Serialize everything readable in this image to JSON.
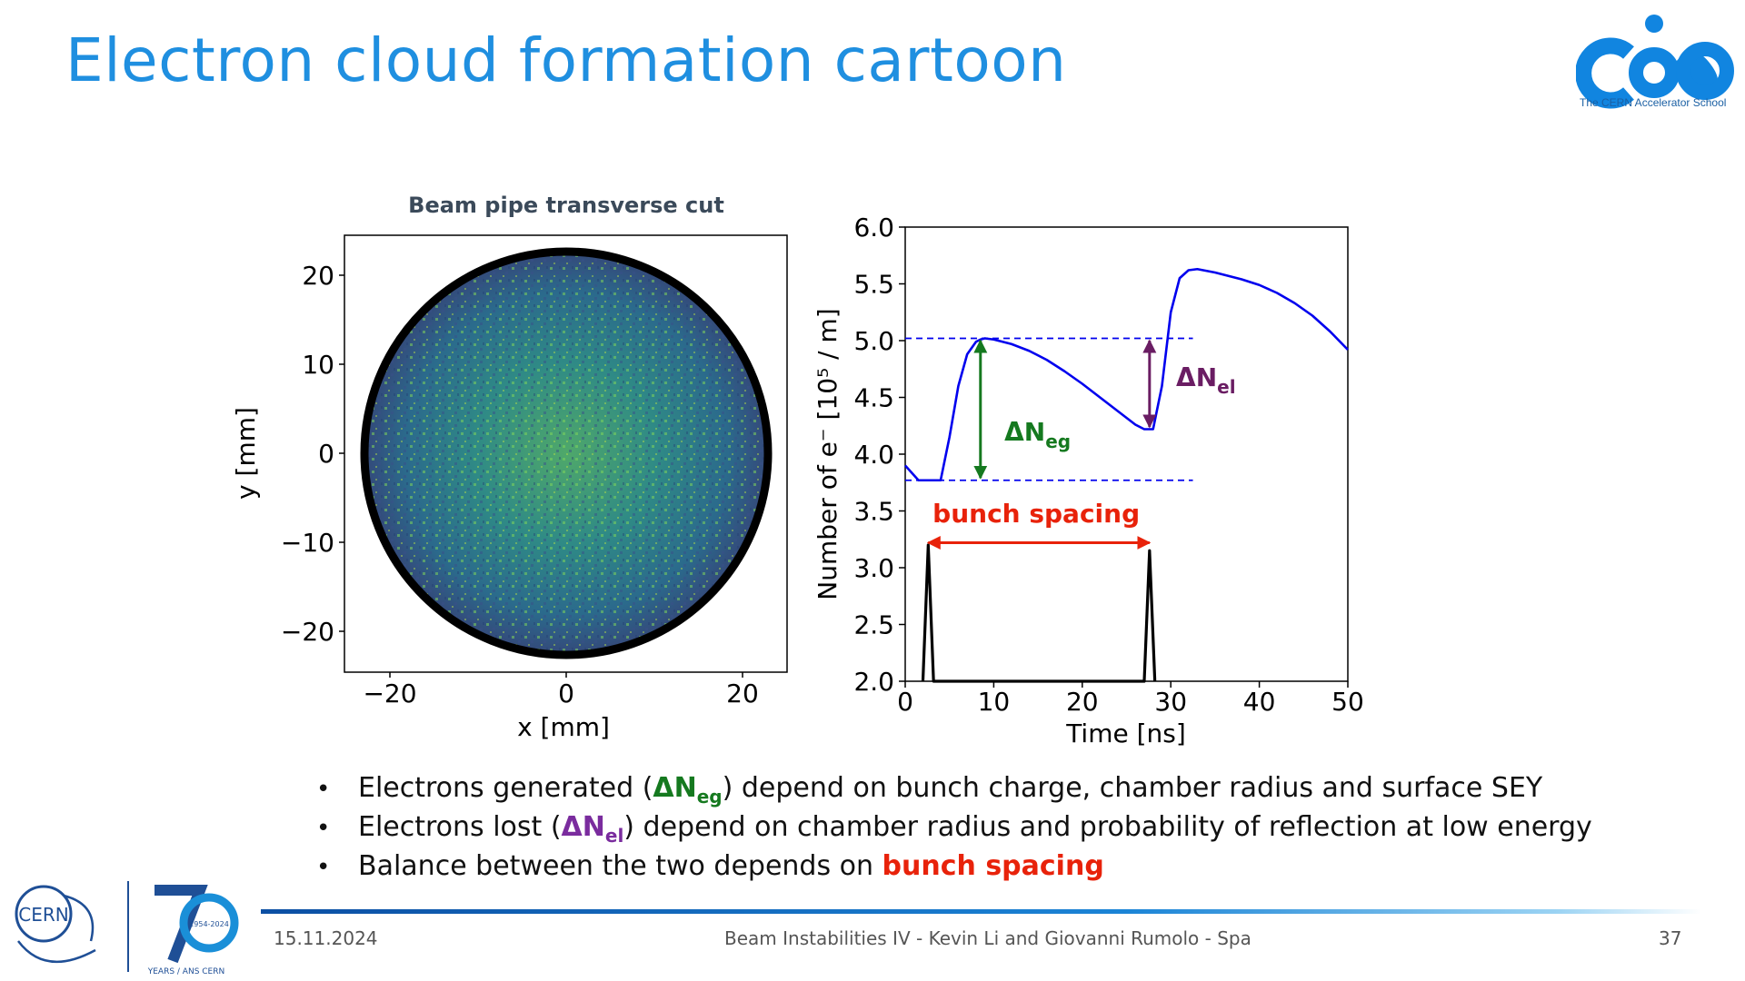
{
  "slide": {
    "title": "Electron cloud formation cartoon",
    "logo_caption": "The CERN Accelerator School",
    "left_plot_title": "Beam pipe transverse cut"
  },
  "left_plot": {
    "xlabel": "x [mm]",
    "ylabel": "y [mm]",
    "xticks": [
      "−20",
      "0",
      "20"
    ],
    "yticks": [
      "20",
      "10",
      "0",
      "−10",
      "−20"
    ]
  },
  "chart_data": {
    "type": "line",
    "xlabel": "Time [ns]",
    "ylabel": "Number of e⁻ [10⁵ / m]",
    "xlim": [
      0,
      50
    ],
    "ylim": [
      2.0,
      6.0
    ],
    "xticks": [
      "0",
      "10",
      "20",
      "30",
      "40",
      "50"
    ],
    "yticks": [
      "6.0",
      "5.5",
      "5.0",
      "4.5",
      "4.0",
      "3.5",
      "3.0",
      "2.5",
      "2.0"
    ],
    "series": [
      {
        "color": "#0000ee",
        "x": [
          0,
          1.5,
          4,
          5,
          6,
          7,
          8,
          8.5,
          9,
          10,
          12,
          14,
          16,
          18,
          20,
          22,
          24,
          26,
          27,
          28,
          29,
          30,
          31,
          32,
          33,
          35,
          38,
          40,
          42,
          44,
          46,
          48,
          50
        ],
        "y": [
          3.9,
          3.77,
          3.77,
          4.15,
          4.6,
          4.88,
          4.99,
          5.01,
          5.02,
          5.01,
          4.97,
          4.91,
          4.83,
          4.73,
          4.62,
          4.5,
          4.38,
          4.26,
          4.22,
          4.22,
          4.6,
          5.25,
          5.55,
          5.62,
          5.63,
          5.6,
          5.54,
          5.49,
          5.42,
          5.33,
          5.22,
          5.08,
          4.92
        ]
      },
      {
        "color": "#000000",
        "x": [
          2.0,
          2.6,
          3.2,
          27.0,
          27.6,
          28.2
        ],
        "y": [
          2.0,
          3.2,
          2.0,
          2.0,
          3.15,
          2.0
        ]
      }
    ],
    "reference_lines": [
      5.02,
      3.77
    ],
    "annotations": [
      {
        "symbol": "ΔN",
        "sub": "eg",
        "color": "#15791f"
      },
      {
        "symbol": "ΔN",
        "sub": "el",
        "color": "#6a1d63"
      },
      {
        "text": "bunch spacing",
        "color": "#e8220a"
      }
    ]
  },
  "bullets": [
    {
      "pre": "Electrons generated (",
      "sym": "ΔN",
      "sub": "eg",
      "post": ") depend on bunch charge, chamber radius and surface SEY"
    },
    {
      "pre": "Electrons lost (",
      "sym": "ΔN",
      "sub": "el",
      "post": ") depend on chamber radius and probability of reflection at low energy"
    },
    {
      "pre": "Balance between the two depends on ",
      "highlight": "bunch spacing"
    }
  ],
  "footer": {
    "date": "15.11.2024",
    "center": "Beam Instabilities IV - Kevin Li and Giovanni Rumolo - Spa",
    "page": "37",
    "cern_label": "CERN",
    "anniv_years": "1954-2024",
    "anniv_caption": "YEARS / ANS CERN"
  },
  "colors": {
    "title": "#1f8fe0",
    "blue_line": "#0000ee",
    "green": "#15791f",
    "purple": "#6a1d63",
    "red": "#e8220a"
  }
}
